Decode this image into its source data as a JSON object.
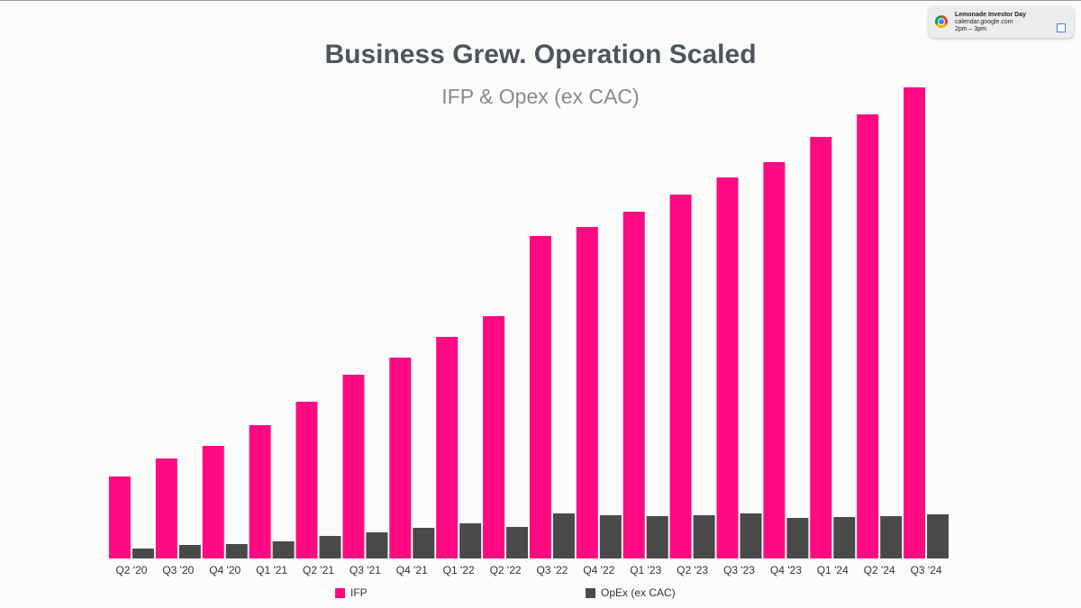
{
  "chart_data": {
    "type": "bar",
    "title": "Business Grew. Operation Scaled",
    "subtitle": "IFP & Opex (ex CAC)",
    "categories": [
      "Q2 '20",
      "Q3 '20",
      "Q4 '20",
      "Q1 '21",
      "Q2 '21",
      "Q3 '21",
      "Q4 '21",
      "Q1 '22",
      "Q2 '22",
      "Q3 '22",
      "Q4 '22",
      "Q1 '23",
      "Q2 '23",
      "Q3 '23",
      "Q4 '23",
      "Q1 '24",
      "Q2 '24",
      "Q3 '24"
    ],
    "series": [
      {
        "name": "IFP",
        "color": "#ff0a83",
        "values": [
          91,
          111,
          125,
          148,
          174,
          204,
          223,
          246,
          269,
          358,
          368,
          385,
          404,
          423,
          440,
          468,
          493,
          523
        ]
      },
      {
        "name": "OpEx (ex CAC)",
        "color": "#4a4a4a",
        "values": [
          11,
          15,
          16,
          19,
          25,
          29,
          34,
          39,
          35,
          50,
          48,
          47,
          48,
          50,
          45,
          46,
          47,
          49
        ]
      }
    ],
    "ylim": [
      0,
      530
    ]
  },
  "notification": {
    "title": "Lemonade Investor Day",
    "source": "calendar.google.com",
    "time": "2pm – 3pm"
  }
}
